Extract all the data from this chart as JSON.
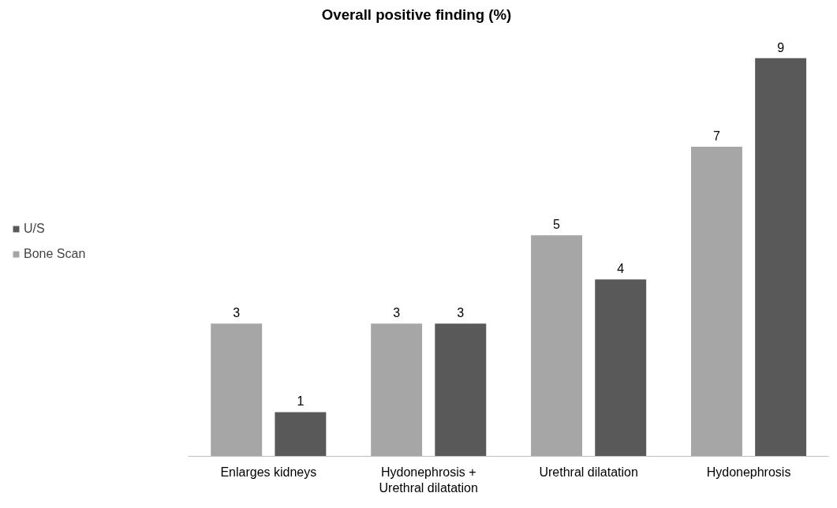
{
  "chart_data": {
    "type": "bar",
    "title": "Overall positive finding (%)",
    "categories": [
      "Enlarges kidneys",
      "Hydonephrosis +\nUrethral dilatation",
      "Urethral dilatation",
      "Hydonephrosis"
    ],
    "series": [
      {
        "name": "Bone Scan",
        "color": "#a6a6a6",
        "values": [
          3,
          3,
          5,
          7
        ]
      },
      {
        "name": "U/S",
        "color": "#595959",
        "values": [
          1,
          3,
          4,
          9
        ]
      }
    ],
    "data_labels": true,
    "legend": "left",
    "grid": false,
    "tick_labels": "x"
  }
}
